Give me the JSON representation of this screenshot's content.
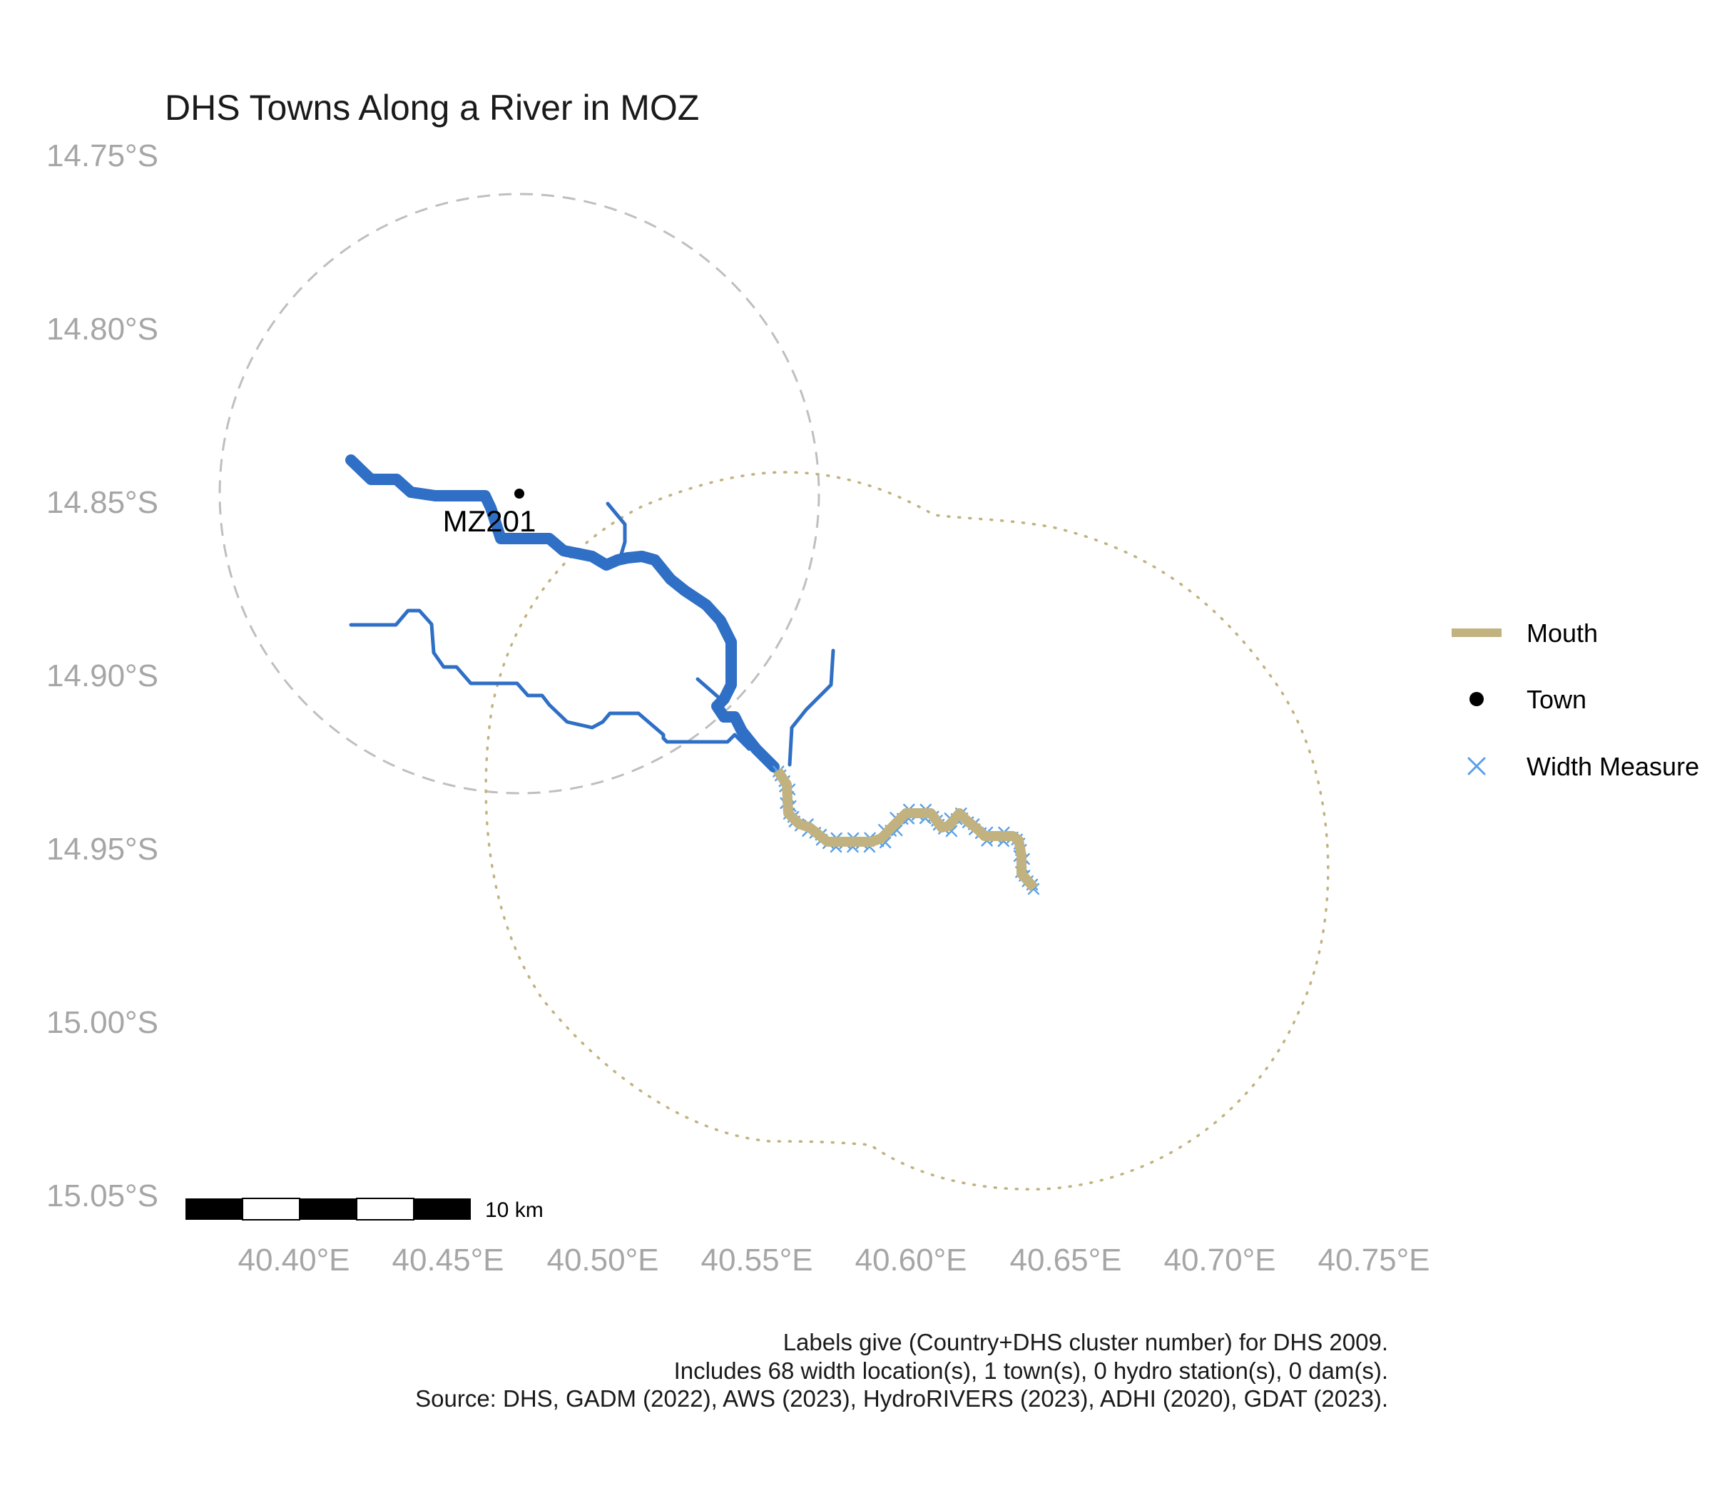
{
  "title": "DHS Towns Along a River in MOZ",
  "y_axis": {
    "ticks": [
      "14.75°S",
      "14.80°S",
      "14.85°S",
      "14.90°S",
      "14.95°S",
      "15.00°S",
      "15.05°S"
    ]
  },
  "x_axis": {
    "ticks": [
      "40.40°E",
      "40.45°E",
      "40.50°E",
      "40.55°E",
      "40.60°E",
      "40.65°E",
      "40.70°E",
      "40.75°E"
    ]
  },
  "legend": {
    "items": [
      {
        "label": "Mouth",
        "symbol": "line",
        "color": "#c2b280"
      },
      {
        "label": "Town",
        "symbol": "dot",
        "color": "#000000"
      },
      {
        "label": "Width Measure",
        "symbol": "x",
        "color": "#5aa0e6"
      }
    ]
  },
  "town": {
    "label": "MZ201",
    "lon": 40.471,
    "lat": -14.847
  },
  "scale_bar": {
    "label": "10 km"
  },
  "caption": {
    "line1": "Labels give (Country+DHS cluster number) for DHS 2009.",
    "line2": "Includes 68 width location(s), 1 town(s), 0 hydro station(s), 0 dam(s).",
    "line3": "Source: DHS, GADM (2022), AWS (2023), HydroRIVERS (2023), ADHI (2020), GDAT (2023)."
  },
  "colors": {
    "river": "#2f6fc5",
    "mouth": "#c2b280",
    "width_marker": "#5aa0e6",
    "circle": "#bfbfbf"
  }
}
